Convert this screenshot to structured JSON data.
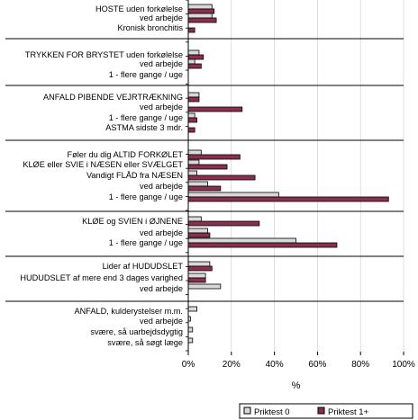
{
  "chart_data": {
    "type": "bar",
    "orientation": "horizontal",
    "xlabel": "%",
    "xlim": [
      0,
      100
    ],
    "xticks": [
      "0%",
      "20%",
      "40%",
      "60%",
      "80%",
      "100%"
    ],
    "legend_placement": "bottom-right",
    "series": [
      {
        "name": "Priktest 0",
        "color": "#d9d9d9"
      },
      {
        "name": "Priktest 1+",
        "color": "#8b2f4f"
      }
    ],
    "categories": [
      {
        "label": "HOSTE uden forkølelse",
        "v0": 11,
        "v1": 12
      },
      {
        "label": "ved arbejde",
        "v0": 11,
        "v1": 13
      },
      {
        "label": "Kronisk bronchitis",
        "v0": 0,
        "v1": 3
      },
      {
        "label": "TRYKKEN FOR BRYSTET uden forkølelse",
        "v0": 5,
        "v1": 7
      },
      {
        "label": "ved arbejde",
        "v0": 3,
        "v1": 6
      },
      {
        "label": "1 - flere gange / uge",
        "v0": 0,
        "v1": 0
      },
      {
        "label": "ANFALD PIBENDE VEJRTRÆKNING",
        "v0": 5,
        "v1": 5
      },
      {
        "label": "ved arbejde",
        "v0": 0,
        "v1": 25
      },
      {
        "label": "1 - flere gange / uge",
        "v0": 3,
        "v1": 4
      },
      {
        "label": "ASTMA sidste 3 mdr.",
        "v0": 0,
        "v1": 3
      },
      {
        "label": "Føler du dig ALTID FORKØLET",
        "v0": 6,
        "v1": 24
      },
      {
        "label": "KLØE eller SVIE i NÆSEN eller SVÆLGET",
        "v0": 5,
        "v1": 18
      },
      {
        "label": "Vandigt FLÅD fra NÆSEN",
        "v0": 4,
        "v1": 31
      },
      {
        "label": "ved arbejde",
        "v0": 9,
        "v1": 15
      },
      {
        "label": "1 - flere gange / uge",
        "v0": 42,
        "v1": 93
      },
      {
        "label": "KLØE og SVIEN i ØJNENE",
        "v0": 6,
        "v1": 33
      },
      {
        "label": "ved arbejde",
        "v0": 9,
        "v1": 10
      },
      {
        "label": "1 - flere gange / uge",
        "v0": 50,
        "v1": 69
      },
      {
        "label": "Lider af HUDUDSLET",
        "v0": 10,
        "v1": 11
      },
      {
        "label": "HUDUDSLET af mere end 3 dages varighed",
        "v0": 8,
        "v1": 8
      },
      {
        "label": "ved arbejde",
        "v0": 15,
        "v1": 0
      },
      {
        "label": "ANFALD, kulderystelser m.m.",
        "v0": 4,
        "v1": 0
      },
      {
        "label": "ved arbejde",
        "v0": 1,
        "v1": 0
      },
      {
        "label": "svære, så uarbejdsdygtig",
        "v0": 2,
        "v1": 0
      },
      {
        "label": "svære, så søgt læge",
        "v0": 2,
        "v1": 0
      }
    ]
  }
}
